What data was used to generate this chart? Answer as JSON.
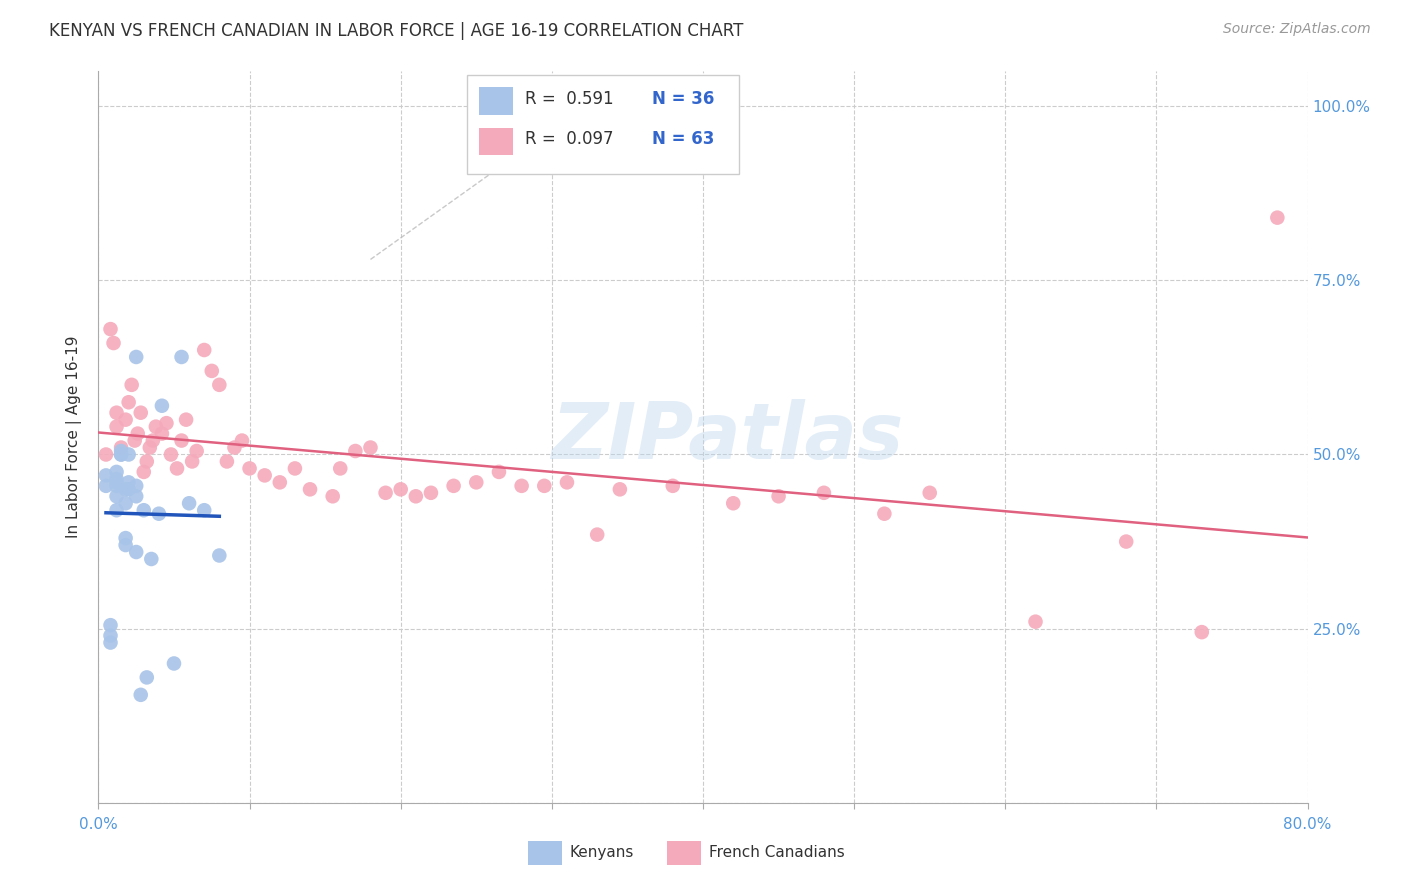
{
  "title": "KENYAN VS FRENCH CANADIAN IN LABOR FORCE | AGE 16-19 CORRELATION CHART",
  "source": "Source: ZipAtlas.com",
  "ylabel": "In Labor Force | Age 16-19",
  "xlim": [
    0.0,
    0.8
  ],
  "ylim": [
    0.0,
    1.05
  ],
  "ytick_positions": [
    0.0,
    0.25,
    0.5,
    0.75,
    1.0
  ],
  "ytick_labels_right": [
    "",
    "25.0%",
    "50.0%",
    "75.0%",
    "100.0%"
  ],
  "background_color": "#ffffff",
  "grid_color": "#cccccc",
  "watermark_text": "ZIPatlas",
  "blue_color": "#A8C4E8",
  "pink_color": "#F5AABB",
  "blue_line_color": "#2255BB",
  "pink_line_color": "#E06080",
  "ref_line_color": "#AAAAAA",
  "kenyan_x": [
    0.005,
    0.005,
    0.008,
    0.008,
    0.008,
    0.012,
    0.012,
    0.012,
    0.012,
    0.012,
    0.012,
    0.015,
    0.015,
    0.015,
    0.018,
    0.018,
    0.018,
    0.018,
    0.02,
    0.02,
    0.02,
    0.025,
    0.025,
    0.025,
    0.025,
    0.028,
    0.03,
    0.032,
    0.035,
    0.04,
    0.042,
    0.05,
    0.055,
    0.06,
    0.07,
    0.08
  ],
  "kenyan_y": [
    0.455,
    0.47,
    0.23,
    0.24,
    0.255,
    0.42,
    0.44,
    0.455,
    0.46,
    0.465,
    0.475,
    0.5,
    0.5,
    0.505,
    0.37,
    0.38,
    0.43,
    0.45,
    0.45,
    0.46,
    0.5,
    0.36,
    0.44,
    0.455,
    0.64,
    0.155,
    0.42,
    0.18,
    0.35,
    0.415,
    0.57,
    0.2,
    0.64,
    0.43,
    0.42,
    0.355
  ],
  "french_x": [
    0.005,
    0.008,
    0.01,
    0.012,
    0.012,
    0.015,
    0.018,
    0.02,
    0.022,
    0.024,
    0.026,
    0.028,
    0.03,
    0.032,
    0.034,
    0.036,
    0.038,
    0.042,
    0.045,
    0.048,
    0.052,
    0.055,
    0.058,
    0.062,
    0.065,
    0.07,
    0.075,
    0.08,
    0.085,
    0.09,
    0.095,
    0.1,
    0.11,
    0.12,
    0.13,
    0.14,
    0.155,
    0.16,
    0.17,
    0.18,
    0.19,
    0.2,
    0.21,
    0.22,
    0.235,
    0.25,
    0.265,
    0.28,
    0.295,
    0.31,
    0.33,
    0.345,
    0.38,
    0.42,
    0.45,
    0.48,
    0.52,
    0.55,
    0.62,
    0.68,
    0.73,
    0.78
  ],
  "french_y": [
    0.5,
    0.68,
    0.66,
    0.54,
    0.56,
    0.51,
    0.55,
    0.575,
    0.6,
    0.52,
    0.53,
    0.56,
    0.475,
    0.49,
    0.51,
    0.52,
    0.54,
    0.53,
    0.545,
    0.5,
    0.48,
    0.52,
    0.55,
    0.49,
    0.505,
    0.65,
    0.62,
    0.6,
    0.49,
    0.51,
    0.52,
    0.48,
    0.47,
    0.46,
    0.48,
    0.45,
    0.44,
    0.48,
    0.505,
    0.51,
    0.445,
    0.45,
    0.44,
    0.445,
    0.455,
    0.46,
    0.475,
    0.455,
    0.455,
    0.46,
    0.385,
    0.45,
    0.455,
    0.43,
    0.44,
    0.445,
    0.415,
    0.445,
    0.26,
    0.375,
    0.245,
    0.84
  ]
}
